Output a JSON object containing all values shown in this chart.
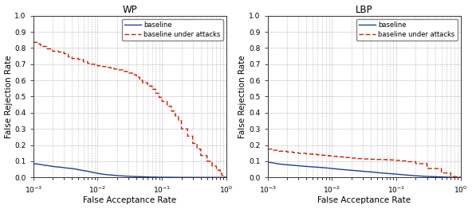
{
  "title_left": "WP",
  "title_right": "LBP",
  "xlabel": "False Acceptance Rate",
  "ylabel": "False Rejection Rate",
  "xlim_log": [
    -3,
    0
  ],
  "ylim": [
    0,
    1
  ],
  "yticks": [
    0.0,
    0.1,
    0.2,
    0.3,
    0.4,
    0.5,
    0.6,
    0.7,
    0.8,
    0.9,
    1.0
  ],
  "legend_labels": [
    "baseline",
    "baseline under attacks"
  ],
  "baseline_color": "#1a3fa0",
  "attack_color": "#cc2200",
  "background_color": "#ffffff",
  "wp_baseline_x": [
    0.001,
    0.00115,
    0.0013,
    0.0015,
    0.00175,
    0.002,
    0.0023,
    0.0027,
    0.003,
    0.0035,
    0.004,
    0.0045,
    0.005,
    0.006,
    0.007,
    0.008,
    0.009,
    0.01,
    0.012,
    0.014,
    0.016,
    0.018,
    0.02,
    0.025,
    0.03,
    0.035,
    0.04,
    0.05,
    0.06,
    0.07,
    0.08,
    0.09,
    0.1,
    0.12,
    0.15,
    0.2,
    0.3,
    0.5,
    0.7,
    1.0
  ],
  "wp_baseline_y": [
    0.085,
    0.083,
    0.08,
    0.075,
    0.072,
    0.068,
    0.065,
    0.063,
    0.06,
    0.057,
    0.055,
    0.052,
    0.048,
    0.042,
    0.038,
    0.033,
    0.029,
    0.025,
    0.02,
    0.017,
    0.015,
    0.013,
    0.011,
    0.009,
    0.007,
    0.006,
    0.005,
    0.004,
    0.003,
    0.002,
    0.002,
    0.001,
    0.001,
    0.001,
    0.0005,
    0.0003,
    0.0002,
    0.0001,
    5e-05,
    0.0
  ],
  "wp_attack_x": [
    0.001,
    0.00115,
    0.00115,
    0.0013,
    0.0013,
    0.0016,
    0.0016,
    0.002,
    0.002,
    0.0025,
    0.0025,
    0.003,
    0.003,
    0.0035,
    0.0035,
    0.004,
    0.004,
    0.005,
    0.005,
    0.006,
    0.006,
    0.007,
    0.007,
    0.008,
    0.008,
    0.009,
    0.009,
    0.01,
    0.01,
    0.012,
    0.012,
    0.014,
    0.014,
    0.016,
    0.016,
    0.018,
    0.018,
    0.02,
    0.02,
    0.025,
    0.025,
    0.03,
    0.03,
    0.035,
    0.035,
    0.04,
    0.04,
    0.045,
    0.045,
    0.05,
    0.05,
    0.06,
    0.06,
    0.07,
    0.07,
    0.08,
    0.08,
    0.09,
    0.09,
    0.1,
    0.1,
    0.12,
    0.12,
    0.14,
    0.14,
    0.16,
    0.16,
    0.18,
    0.18,
    0.2,
    0.2,
    0.25,
    0.25,
    0.3,
    0.3,
    0.35,
    0.35,
    0.4,
    0.4,
    0.5,
    0.5,
    0.6,
    0.6,
    0.7,
    0.7,
    0.8,
    0.8,
    0.85,
    0.85,
    0.9,
    0.9,
    1.0
  ],
  "wp_attack_y": [
    0.835,
    0.835,
    0.825,
    0.825,
    0.81,
    0.81,
    0.795,
    0.795,
    0.78,
    0.78,
    0.775,
    0.775,
    0.765,
    0.765,
    0.745,
    0.745,
    0.735,
    0.735,
    0.73,
    0.73,
    0.715,
    0.715,
    0.705,
    0.705,
    0.7,
    0.7,
    0.695,
    0.695,
    0.69,
    0.69,
    0.685,
    0.685,
    0.68,
    0.68,
    0.675,
    0.675,
    0.67,
    0.67,
    0.665,
    0.665,
    0.655,
    0.655,
    0.645,
    0.645,
    0.635,
    0.635,
    0.62,
    0.62,
    0.6,
    0.6,
    0.585,
    0.585,
    0.565,
    0.565,
    0.545,
    0.545,
    0.52,
    0.52,
    0.495,
    0.495,
    0.47,
    0.47,
    0.44,
    0.44,
    0.41,
    0.41,
    0.38,
    0.38,
    0.35,
    0.35,
    0.3,
    0.3,
    0.255,
    0.255,
    0.21,
    0.21,
    0.175,
    0.175,
    0.135,
    0.135,
    0.1,
    0.1,
    0.07,
    0.07,
    0.045,
    0.045,
    0.025,
    0.025,
    0.012,
    0.012,
    0.003,
    0.0
  ],
  "lbp_baseline_x": [
    0.001,
    0.0012,
    0.0014,
    0.0016,
    0.002,
    0.0025,
    0.003,
    0.004,
    0.005,
    0.006,
    0.007,
    0.008,
    0.009,
    0.01,
    0.012,
    0.015,
    0.02,
    0.025,
    0.03,
    0.04,
    0.05,
    0.07,
    0.1,
    0.15,
    0.2,
    0.3,
    0.5,
    0.7,
    1.0
  ],
  "lbp_baseline_y": [
    0.095,
    0.09,
    0.085,
    0.082,
    0.078,
    0.075,
    0.072,
    0.068,
    0.065,
    0.063,
    0.061,
    0.059,
    0.057,
    0.055,
    0.052,
    0.048,
    0.044,
    0.041,
    0.038,
    0.034,
    0.03,
    0.025,
    0.02,
    0.014,
    0.01,
    0.006,
    0.003,
    0.001,
    0.0
  ],
  "lbp_attack_x": [
    0.001,
    0.0012,
    0.0012,
    0.0015,
    0.0015,
    0.002,
    0.002,
    0.0025,
    0.0025,
    0.003,
    0.003,
    0.004,
    0.004,
    0.005,
    0.005,
    0.006,
    0.006,
    0.007,
    0.007,
    0.008,
    0.008,
    0.009,
    0.009,
    0.01,
    0.01,
    0.012,
    0.012,
    0.015,
    0.015,
    0.02,
    0.02,
    0.025,
    0.025,
    0.03,
    0.03,
    0.04,
    0.04,
    0.05,
    0.05,
    0.06,
    0.06,
    0.07,
    0.07,
    0.08,
    0.08,
    0.09,
    0.09,
    0.1,
    0.1,
    0.12,
    0.12,
    0.15,
    0.15,
    0.2,
    0.2,
    0.3,
    0.3,
    0.5,
    0.5,
    0.7,
    0.7,
    1.0
  ],
  "lbp_attack_y": [
    0.175,
    0.175,
    0.168,
    0.168,
    0.162,
    0.162,
    0.157,
    0.157,
    0.153,
    0.153,
    0.149,
    0.149,
    0.145,
    0.145,
    0.142,
    0.142,
    0.139,
    0.139,
    0.137,
    0.137,
    0.135,
    0.135,
    0.133,
    0.133,
    0.13,
    0.13,
    0.127,
    0.127,
    0.123,
    0.123,
    0.119,
    0.119,
    0.116,
    0.116,
    0.114,
    0.114,
    0.112,
    0.112,
    0.111,
    0.111,
    0.11,
    0.11,
    0.109,
    0.109,
    0.108,
    0.108,
    0.107,
    0.107,
    0.105,
    0.105,
    0.102,
    0.102,
    0.097,
    0.097,
    0.085,
    0.085,
    0.055,
    0.055,
    0.028,
    0.028,
    0.008,
    0.0
  ]
}
